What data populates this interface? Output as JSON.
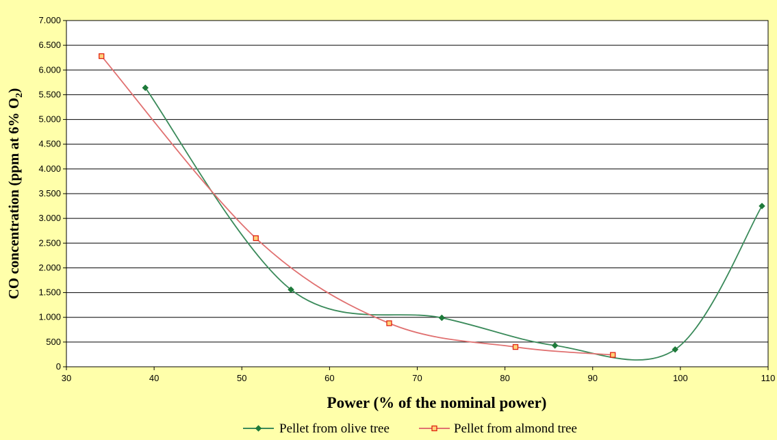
{
  "chart_data": {
    "type": "line",
    "xlabel": "Power (% of the nominal power)",
    "ylabel_main": "CO concentration (ppm at 6% O",
    "ylabel_sub": "2",
    "ylabel_end": ")",
    "xlim": [
      30,
      110
    ],
    "ylim": [
      0,
      7000
    ],
    "x_ticks": [
      {
        "value": 30,
        "label": "30"
      },
      {
        "value": 40,
        "label": "40"
      },
      {
        "value": 50,
        "label": "50"
      },
      {
        "value": 60,
        "label": "60"
      },
      {
        "value": 70,
        "label": "70"
      },
      {
        "value": 80,
        "label": "80"
      },
      {
        "value": 90,
        "label": "90"
      },
      {
        "value": 100,
        "label": "100"
      },
      {
        "value": 110,
        "label": "110"
      }
    ],
    "y_ticks": [
      {
        "value": 0,
        "label": "0"
      },
      {
        "value": 500,
        "label": "500"
      },
      {
        "value": 1000,
        "label": "1.000"
      },
      {
        "value": 1500,
        "label": "1.500"
      },
      {
        "value": 2000,
        "label": "2.000"
      },
      {
        "value": 2500,
        "label": "2.500"
      },
      {
        "value": 3000,
        "label": "3.000"
      },
      {
        "value": 3500,
        "label": "3.500"
      },
      {
        "value": 4000,
        "label": "4.000"
      },
      {
        "value": 4500,
        "label": "4.500"
      },
      {
        "value": 5000,
        "label": "5.000"
      },
      {
        "value": 5500,
        "label": "5.500"
      },
      {
        "value": 6000,
        "label": "6.000"
      },
      {
        "value": 6500,
        "label": "6.500"
      },
      {
        "value": 7000,
        "label": "7.000"
      }
    ],
    "grid": "horizontal",
    "legend_position": "bottom",
    "series": [
      {
        "name": "Pellet from olive tree",
        "color": "#3a8a5a",
        "marker": "diamond",
        "marker_color": "#1e7a3a",
        "smooth": true,
        "points": [
          [
            39,
            5640
          ],
          [
            55.6,
            1560
          ],
          [
            72.8,
            990
          ],
          [
            85.7,
            430
          ],
          [
            99.4,
            350
          ],
          [
            109.3,
            3250
          ]
        ]
      },
      {
        "name": "Pellet from almond tree",
        "color": "#e07070",
        "marker": "square",
        "marker_color": "#e02010",
        "smooth": true,
        "points": [
          [
            34,
            6280
          ],
          [
            51.6,
            2600
          ],
          [
            66.8,
            880
          ],
          [
            81.2,
            400
          ],
          [
            92.3,
            240
          ]
        ]
      }
    ]
  }
}
